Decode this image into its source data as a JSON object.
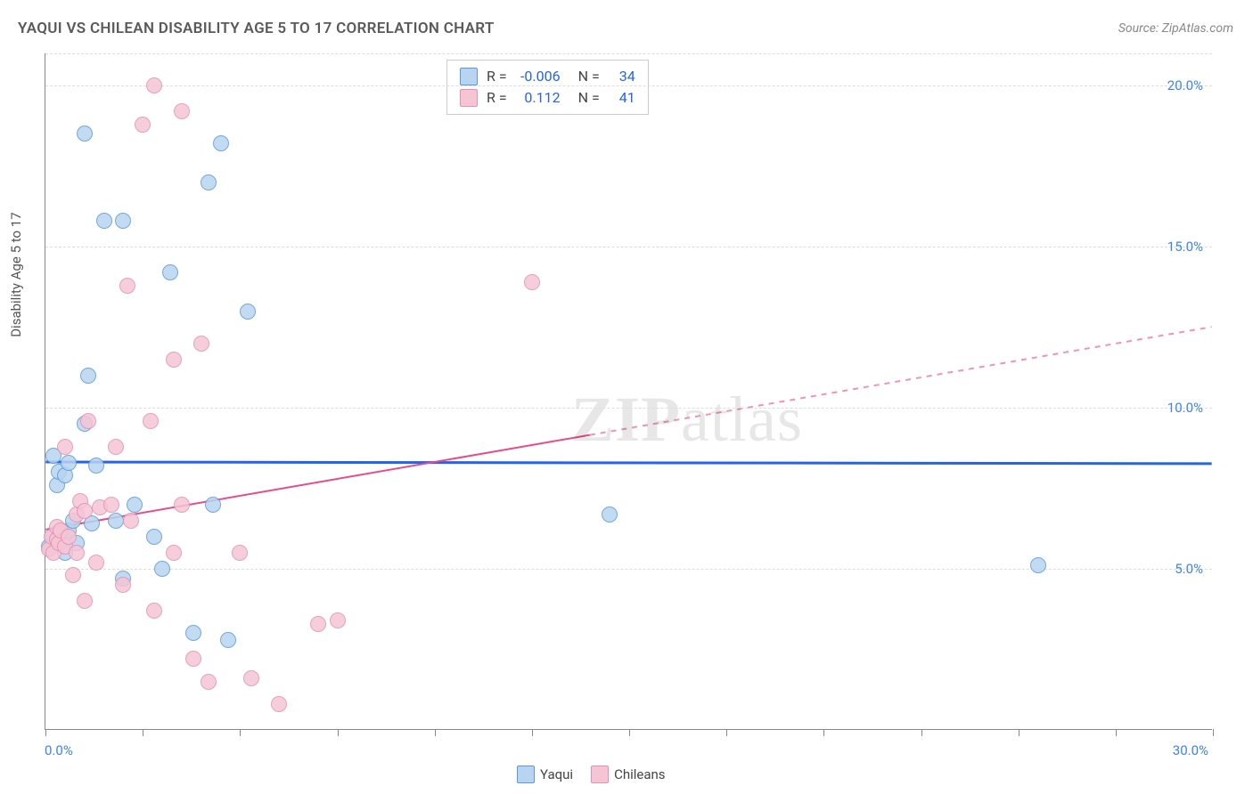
{
  "title": "YAQUI VS CHILEAN DISABILITY AGE 5 TO 17 CORRELATION CHART",
  "source": "Source: ZipAtlas.com",
  "ylabel": "Disability Age 5 to 17",
  "watermark_a": "ZIP",
  "watermark_b": "atlas",
  "chart": {
    "type": "scatter",
    "xlim": [
      0,
      30
    ],
    "ylim": [
      0,
      21
    ],
    "xtick_positions": [
      0,
      2.5,
      5,
      7.5,
      10,
      12.5,
      15,
      17.5,
      20,
      22.5,
      25,
      27.5,
      30
    ],
    "ytick_positions": [
      5,
      10,
      15,
      20
    ],
    "ytick_labels": [
      "5.0%",
      "10.0%",
      "15.0%",
      "20.0%"
    ],
    "xmin_label": "0.0%",
    "xmax_label": "30.0%",
    "grid_color": "#dddddd",
    "axis_color": "#888888",
    "background_color": "#ffffff",
    "point_radius": 9,
    "series": [
      {
        "name": "Yaqui",
        "color_fill": "#b8d4f0",
        "color_stroke": "#5a9bd5",
        "R": "-0.006",
        "N": "34",
        "trend": {
          "y_at_x0": 8.3,
          "y_at_x30": 8.25,
          "solid_until_x": 30,
          "color": "#2563eb",
          "width": 3
        },
        "points": [
          [
            0.1,
            5.7
          ],
          [
            0.2,
            6.0
          ],
          [
            0.2,
            8.5
          ],
          [
            0.3,
            5.9
          ],
          [
            0.3,
            7.6
          ],
          [
            0.35,
            8.0
          ],
          [
            0.4,
            6.1
          ],
          [
            0.5,
            5.5
          ],
          [
            0.5,
            7.9
          ],
          [
            0.6,
            6.2
          ],
          [
            0.6,
            8.3
          ],
          [
            0.7,
            6.5
          ],
          [
            0.8,
            5.8
          ],
          [
            1.0,
            9.5
          ],
          [
            1.0,
            18.5
          ],
          [
            1.1,
            11.0
          ],
          [
            1.2,
            6.4
          ],
          [
            1.3,
            8.2
          ],
          [
            1.5,
            15.8
          ],
          [
            1.8,
            6.5
          ],
          [
            2.0,
            4.7
          ],
          [
            2.0,
            15.8
          ],
          [
            2.3,
            7.0
          ],
          [
            2.8,
            6.0
          ],
          [
            3.0,
            5.0
          ],
          [
            3.2,
            14.2
          ],
          [
            3.8,
            3.0
          ],
          [
            4.2,
            17.0
          ],
          [
            4.3,
            7.0
          ],
          [
            4.5,
            18.2
          ],
          [
            4.7,
            2.8
          ],
          [
            5.2,
            13.0
          ],
          [
            14.5,
            6.7
          ],
          [
            25.5,
            5.1
          ]
        ]
      },
      {
        "name": "Chileans",
        "color_fill": "#f5c5d5",
        "color_stroke": "#e78fb0",
        "R": "0.112",
        "N": "41",
        "trend": {
          "y_at_x0": 6.2,
          "y_at_x30": 12.5,
          "solid_until_x": 14,
          "color": "#e94b8a",
          "width": 2
        },
        "points": [
          [
            0.1,
            5.6
          ],
          [
            0.15,
            6.0
          ],
          [
            0.2,
            5.5
          ],
          [
            0.3,
            5.9
          ],
          [
            0.3,
            6.3
          ],
          [
            0.35,
            5.8
          ],
          [
            0.4,
            6.2
          ],
          [
            0.5,
            5.7
          ],
          [
            0.5,
            8.8
          ],
          [
            0.6,
            6.0
          ],
          [
            0.7,
            4.8
          ],
          [
            0.8,
            5.5
          ],
          [
            0.8,
            6.7
          ],
          [
            0.9,
            7.1
          ],
          [
            1.0,
            4.0
          ],
          [
            1.0,
            6.8
          ],
          [
            1.1,
            9.6
          ],
          [
            1.3,
            5.2
          ],
          [
            1.4,
            6.9
          ],
          [
            1.7,
            7.0
          ],
          [
            1.8,
            8.8
          ],
          [
            2.0,
            4.5
          ],
          [
            2.1,
            13.8
          ],
          [
            2.2,
            6.5
          ],
          [
            2.5,
            18.8
          ],
          [
            2.7,
            9.6
          ],
          [
            2.8,
            3.7
          ],
          [
            2.8,
            20.0
          ],
          [
            3.3,
            5.5
          ],
          [
            3.3,
            11.5
          ],
          [
            3.5,
            7.0
          ],
          [
            3.5,
            19.2
          ],
          [
            3.8,
            2.2
          ],
          [
            4.0,
            12.0
          ],
          [
            4.2,
            1.5
          ],
          [
            5.0,
            5.5
          ],
          [
            5.3,
            1.6
          ],
          [
            6.0,
            0.8
          ],
          [
            7.0,
            3.3
          ],
          [
            7.5,
            3.4
          ],
          [
            12.5,
            13.9
          ]
        ]
      }
    ]
  },
  "legend_bottom": [
    {
      "label": "Yaqui",
      "fill": "#b8d4f0",
      "stroke": "#5a9bd5"
    },
    {
      "label": "Chileans",
      "fill": "#f5c5d5",
      "stroke": "#e78fb0"
    }
  ]
}
